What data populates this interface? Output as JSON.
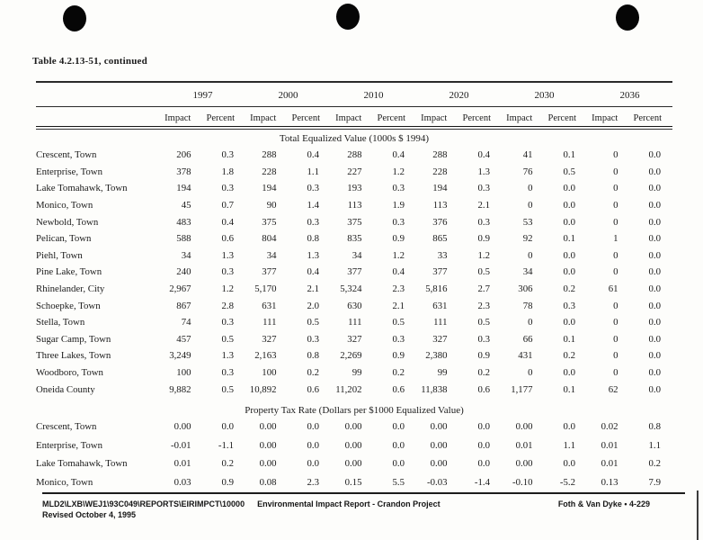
{
  "page": {
    "title": "Table 4.2.13-51, continued",
    "punch_hole_icon": "punch-hole",
    "punch_hole_count": 3,
    "text_color": "#1b1b1b",
    "paper_color": "#fdfdfb"
  },
  "table": {
    "years": [
      "1997",
      "2000",
      "2010",
      "2020",
      "2030",
      "2036"
    ],
    "sub_headers": [
      "Impact",
      "Percent"
    ],
    "sections": [
      {
        "title": "Total Equalized Value (1000s $ 1994)",
        "rows": [
          {
            "label": "Crescent, Town",
            "values": [
              "206",
              "0.3",
              "288",
              "0.4",
              "288",
              "0.4",
              "288",
              "0.4",
              "41",
              "0.1",
              "0",
              "0.0"
            ]
          },
          {
            "label": "Enterprise, Town",
            "values": [
              "378",
              "1.8",
              "228",
              "1.1",
              "227",
              "1.2",
              "228",
              "1.3",
              "76",
              "0.5",
              "0",
              "0.0"
            ]
          },
          {
            "label": "Lake Tomahawk, Town",
            "values": [
              "194",
              "0.3",
              "194",
              "0.3",
              "193",
              "0.3",
              "194",
              "0.3",
              "0",
              "0.0",
              "0",
              "0.0"
            ]
          },
          {
            "label": "Monico, Town",
            "values": [
              "45",
              "0.7",
              "90",
              "1.4",
              "113",
              "1.9",
              "113",
              "2.1",
              "0",
              "0.0",
              "0",
              "0.0"
            ]
          },
          {
            "label": "Newbold, Town",
            "values": [
              "483",
              "0.4",
              "375",
              "0.3",
              "375",
              "0.3",
              "376",
              "0.3",
              "53",
              "0.0",
              "0",
              "0.0"
            ]
          },
          {
            "label": "Pelican, Town",
            "values": [
              "588",
              "0.6",
              "804",
              "0.8",
              "835",
              "0.9",
              "865",
              "0.9",
              "92",
              "0.1",
              "1",
              "0.0"
            ]
          },
          {
            "label": "Piehl, Town",
            "values": [
              "34",
              "1.3",
              "34",
              "1.3",
              "34",
              "1.2",
              "33",
              "1.2",
              "0",
              "0.0",
              "0",
              "0.0"
            ]
          },
          {
            "label": "Pine Lake, Town",
            "values": [
              "240",
              "0.3",
              "377",
              "0.4",
              "377",
              "0.4",
              "377",
              "0.5",
              "34",
              "0.0",
              "0",
              "0.0"
            ]
          },
          {
            "label": "Rhinelander, City",
            "values": [
              "2,967",
              "1.2",
              "5,170",
              "2.1",
              "5,324",
              "2.3",
              "5,816",
              "2.7",
              "306",
              "0.2",
              "61",
              "0.0"
            ]
          },
          {
            "label": "Schoepke, Town",
            "values": [
              "867",
              "2.8",
              "631",
              "2.0",
              "630",
              "2.1",
              "631",
              "2.3",
              "78",
              "0.3",
              "0",
              "0.0"
            ]
          },
          {
            "label": "Stella, Town",
            "values": [
              "74",
              "0.3",
              "111",
              "0.5",
              "111",
              "0.5",
              "111",
              "0.5",
              "0",
              "0.0",
              "0",
              "0.0"
            ]
          },
          {
            "label": "Sugar Camp, Town",
            "values": [
              "457",
              "0.5",
              "327",
              "0.3",
              "327",
              "0.3",
              "327",
              "0.3",
              "66",
              "0.1",
              "0",
              "0.0"
            ]
          },
          {
            "label": "Three Lakes, Town",
            "values": [
              "3,249",
              "1.3",
              "2,163",
              "0.8",
              "2,269",
              "0.9",
              "2,380",
              "0.9",
              "431",
              "0.2",
              "0",
              "0.0"
            ]
          },
          {
            "label": "Woodboro, Town",
            "values": [
              "100",
              "0.3",
              "100",
              "0.2",
              "99",
              "0.2",
              "99",
              "0.2",
              "0",
              "0.0",
              "0",
              "0.0"
            ]
          },
          {
            "label": "Oneida County",
            "values": [
              "9,882",
              "0.5",
              "10,892",
              "0.6",
              "11,202",
              "0.6",
              "11,838",
              "0.6",
              "1,177",
              "0.1",
              "62",
              "0.0"
            ]
          }
        ]
      },
      {
        "title": "Property Tax Rate (Dollars per $1000 Equalized Value)",
        "rows": [
          {
            "label": "Crescent, Town",
            "values": [
              "0.00",
              "0.0",
              "0.00",
              "0.0",
              "0.00",
              "0.0",
              "0.00",
              "0.0",
              "0.00",
              "0.0",
              "0.02",
              "0.8"
            ]
          },
          {
            "label": "Enterprise, Town",
            "values": [
              "-0.01",
              "-1.1",
              "0.00",
              "0.0",
              "0.00",
              "0.0",
              "0.00",
              "0.0",
              "0.01",
              "1.1",
              "0.01",
              "1.1"
            ]
          },
          {
            "label": "Lake Tomahawk, Town",
            "values": [
              "0.01",
              "0.2",
              "0.00",
              "0.0",
              "0.00",
              "0.0",
              "0.00",
              "0.0",
              "0.00",
              "0.0",
              "0.01",
              "0.2"
            ]
          },
          {
            "label": "Monico, Town",
            "values": [
              "0.03",
              "0.9",
              "0.08",
              "2.3",
              "0.15",
              "5.5",
              "-0.03",
              "-1.4",
              "-0.10",
              "-5.2",
              "0.13",
              "7.9"
            ]
          }
        ]
      }
    ]
  },
  "footer": {
    "path": "MLD2\\LXB\\WEJ1\\93C049\\REPORTS\\EIRIMPCT\\10000",
    "report": "Environmental Impact Report - Crandon Project",
    "right": "Foth & Van Dyke • 4-229",
    "revised": "Revised October 4, 1995"
  }
}
